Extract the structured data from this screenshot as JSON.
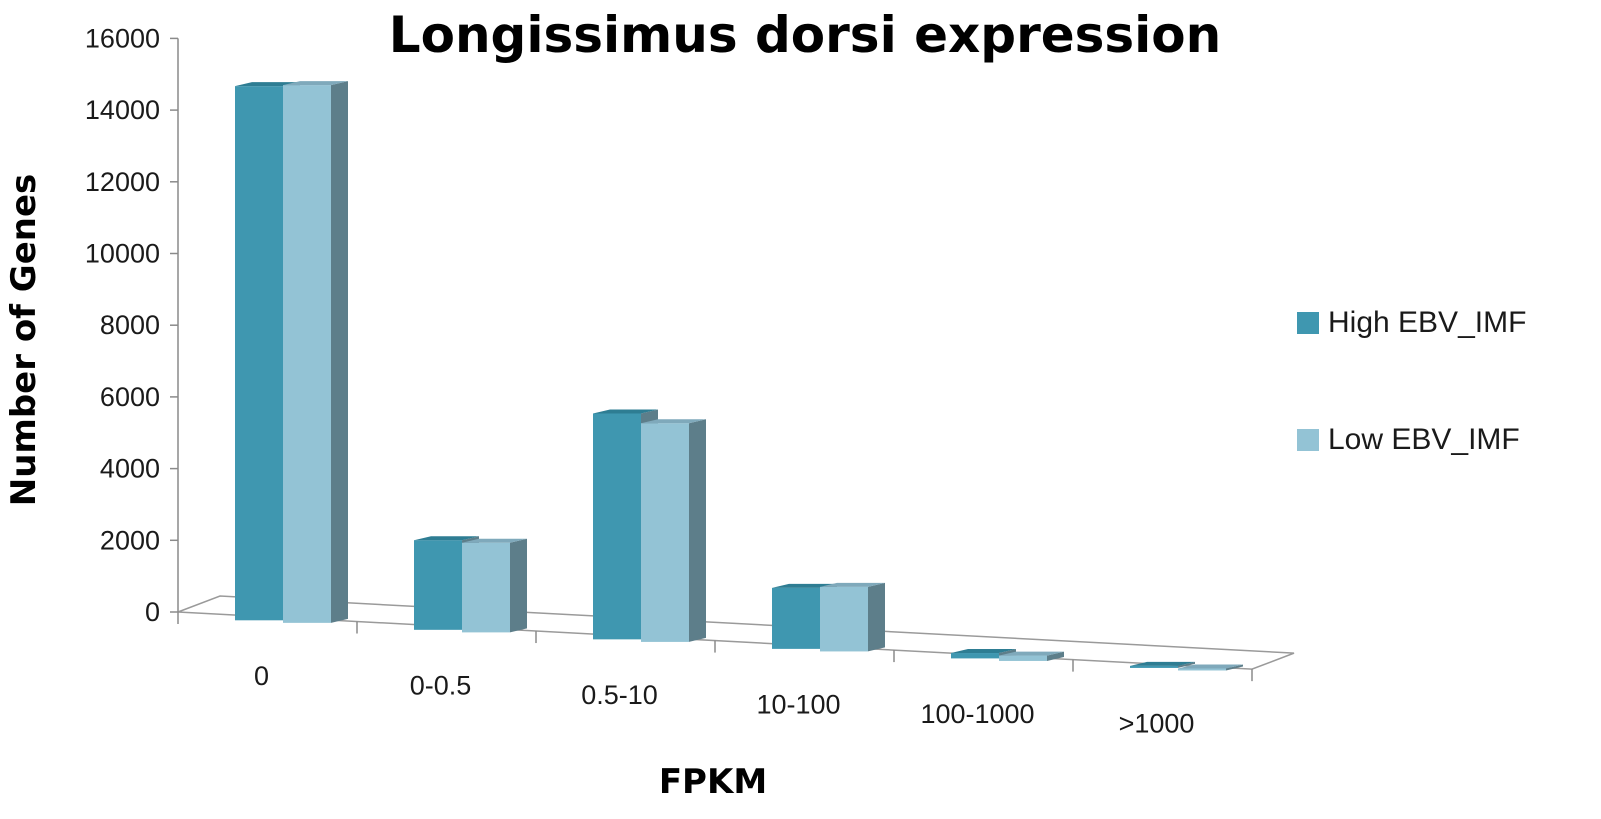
{
  "chart_data": {
    "type": "bar",
    "title": "Longissimus dorsi expression",
    "xlabel": "FPKM",
    "ylabel": "Number of Genes",
    "categories": [
      "0",
      "0-0.5",
      "0.5-10",
      "10-100",
      "100-1000",
      ">1000"
    ],
    "series": [
      {
        "name": "High EBV_IMF",
        "values": [
          14900,
          2500,
          6300,
          1700,
          150,
          30
        ],
        "color": "#3f97b0",
        "top_color": "#2e7d93",
        "side_color": "#5d7e8a"
      },
      {
        "name": "Low EBV_IMF",
        "values": [
          15000,
          2500,
          6100,
          1800,
          150,
          30
        ],
        "color": "#93c3d5",
        "top_color": "#7fa9bb",
        "side_color": "#5d7e8a"
      }
    ],
    "yticks": [
      0,
      2000,
      4000,
      6000,
      8000,
      10000,
      12000,
      14000,
      16000
    ],
    "ylim": [
      0,
      16000
    ],
    "projection": "3d-perspective",
    "grid": false,
    "legend_position": "right"
  }
}
